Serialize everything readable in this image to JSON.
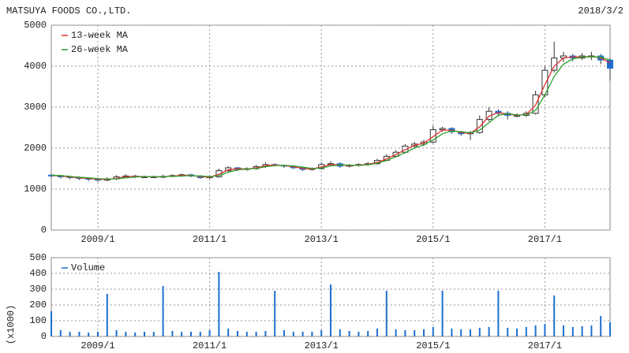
{
  "chart_data": [
    {
      "type": "candlestick",
      "title": "MATSUYA FOODS CO.,LTD.",
      "date_label": "2018/3/2",
      "x": [
        "2008/3",
        "2008/5",
        "2008/7",
        "2008/9",
        "2008/11",
        "2009/1",
        "2009/3",
        "2009/5",
        "2009/7",
        "2009/9",
        "2009/11",
        "2010/1",
        "2010/3",
        "2010/5",
        "2010/7",
        "2010/9",
        "2010/11",
        "2011/1",
        "2011/3",
        "2011/5",
        "2011/7",
        "2011/9",
        "2011/11",
        "2012/1",
        "2012/3",
        "2012/5",
        "2012/7",
        "2012/9",
        "2012/11",
        "2013/1",
        "2013/3",
        "2013/5",
        "2013/7",
        "2013/9",
        "2013/11",
        "2014/1",
        "2014/3",
        "2014/5",
        "2014/7",
        "2014/9",
        "2014/11",
        "2015/1",
        "2015/3",
        "2015/5",
        "2015/7",
        "2015/9",
        "2015/11",
        "2016/1",
        "2016/3",
        "2016/5",
        "2016/7",
        "2016/9",
        "2016/11",
        "2017/1",
        "2017/3",
        "2017/5",
        "2017/7",
        "2017/9",
        "2017/11",
        "2018/1",
        "2018/3"
      ],
      "open": [
        1340,
        1330,
        1300,
        1280,
        1260,
        1250,
        1220,
        1250,
        1300,
        1320,
        1300,
        1300,
        1300,
        1310,
        1330,
        1350,
        1320,
        1280,
        1300,
        1450,
        1520,
        1480,
        1500,
        1550,
        1600,
        1580,
        1560,
        1520,
        1480,
        1500,
        1600,
        1620,
        1560,
        1580,
        1600,
        1620,
        1700,
        1800,
        1900,
        2050,
        2100,
        2150,
        2450,
        2480,
        2400,
        2350,
        2380,
        2700,
        2900,
        2850,
        2800,
        2800,
        2850,
        3300,
        3900,
        4200,
        4250,
        4200,
        4250,
        4250,
        4150
      ],
      "high": [
        1370,
        1350,
        1330,
        1310,
        1290,
        1280,
        1290,
        1340,
        1360,
        1350,
        1330,
        1330,
        1350,
        1360,
        1380,
        1370,
        1340,
        1330,
        1500,
        1560,
        1540,
        1530,
        1590,
        1650,
        1630,
        1600,
        1580,
        1550,
        1530,
        1650,
        1680,
        1650,
        1610,
        1630,
        1660,
        1740,
        1850,
        1950,
        2100,
        2150,
        2200,
        2550,
        2520,
        2510,
        2420,
        2420,
        2800,
        3000,
        2950,
        2900,
        2850,
        2900,
        3400,
        4000,
        4600,
        4350,
        4300,
        4320,
        4350,
        4300,
        4200
      ],
      "low": [
        1290,
        1260,
        1240,
        1220,
        1200,
        1170,
        1190,
        1220,
        1270,
        1270,
        1270,
        1270,
        1270,
        1290,
        1300,
        1290,
        1250,
        1250,
        1280,
        1420,
        1440,
        1450,
        1470,
        1520,
        1550,
        1520,
        1490,
        1440,
        1450,
        1480,
        1560,
        1520,
        1530,
        1550,
        1570,
        1600,
        1680,
        1770,
        1870,
        2000,
        2050,
        2120,
        2400,
        2350,
        2300,
        2200,
        2350,
        2650,
        2780,
        2700,
        2750,
        2760,
        2820,
        3250,
        3850,
        4100,
        4120,
        4150,
        4150,
        4050,
        3650
      ],
      "close": [
        1330,
        1300,
        1280,
        1260,
        1250,
        1220,
        1250,
        1300,
        1320,
        1300,
        1300,
        1300,
        1310,
        1330,
        1350,
        1320,
        1280,
        1300,
        1450,
        1520,
        1480,
        1500,
        1550,
        1600,
        1580,
        1560,
        1520,
        1480,
        1500,
        1600,
        1620,
        1560,
        1580,
        1600,
        1620,
        1700,
        1800,
        1900,
        2050,
        2100,
        2150,
        2450,
        2480,
        2400,
        2350,
        2380,
        2700,
        2900,
        2850,
        2800,
        2800,
        2850,
        3300,
        3900,
        4200,
        4250,
        4200,
        4250,
        4250,
        4150,
        3950
      ],
      "up_color": "#ffffff",
      "down_color": "#1f6fd0",
      "series": [
        {
          "name": "13-week MA",
          "color": "#e0302f",
          "values": [
            1335,
            1320,
            1295,
            1275,
            1260,
            1240,
            1235,
            1265,
            1300,
            1310,
            1305,
            1300,
            1305,
            1315,
            1335,
            1335,
            1305,
            1290,
            1360,
            1470,
            1500,
            1490,
            1520,
            1570,
            1590,
            1575,
            1545,
            1505,
            1490,
            1540,
            1600,
            1590,
            1570,
            1585,
            1605,
            1650,
            1740,
            1840,
            1960,
            2070,
            2120,
            2280,
            2440,
            2440,
            2380,
            2360,
            2520,
            2780,
            2870,
            2830,
            2800,
            2820,
            3050,
            3550,
            4000,
            4200,
            4230,
            4220,
            4240,
            4200,
            4080
          ]
        },
        {
          "name": "26-week MA",
          "color": "#2ca02c",
          "values": [
            1340,
            1330,
            1310,
            1290,
            1275,
            1255,
            1245,
            1250,
            1275,
            1295,
            1305,
            1305,
            1305,
            1310,
            1320,
            1330,
            1320,
            1305,
            1330,
            1410,
            1470,
            1490,
            1505,
            1545,
            1575,
            1580,
            1565,
            1535,
            1505,
            1515,
            1565,
            1590,
            1585,
            1580,
            1595,
            1630,
            1700,
            1790,
            1890,
            2000,
            2080,
            2200,
            2350,
            2420,
            2400,
            2370,
            2440,
            2620,
            2800,
            2840,
            2810,
            2810,
            2920,
            3300,
            3750,
            4050,
            4180,
            4220,
            4230,
            4220,
            4150
          ]
        }
      ],
      "ylim": [
        0,
        5000
      ],
      "yticks": [
        0,
        1000,
        2000,
        3000,
        4000,
        5000
      ],
      "xticks": [
        "2009/1",
        "2011/1",
        "2013/1",
        "2015/1",
        "2017/1"
      ],
      "grid": true,
      "legend": "upper left"
    },
    {
      "type": "bar",
      "ylabel": "(x1000)",
      "x": [
        "2008/3",
        "2008/5",
        "2008/7",
        "2008/9",
        "2008/11",
        "2009/1",
        "2009/3",
        "2009/5",
        "2009/7",
        "2009/9",
        "2009/11",
        "2010/1",
        "2010/3",
        "2010/5",
        "2010/7",
        "2010/9",
        "2010/11",
        "2011/1",
        "2011/3",
        "2011/5",
        "2011/7",
        "2011/9",
        "2011/11",
        "2012/1",
        "2012/3",
        "2012/5",
        "2012/7",
        "2012/9",
        "2012/11",
        "2013/1",
        "2013/3",
        "2013/5",
        "2013/7",
        "2013/9",
        "2013/11",
        "2014/1",
        "2014/3",
        "2014/5",
        "2014/7",
        "2014/9",
        "2014/11",
        "2015/1",
        "2015/3",
        "2015/5",
        "2015/7",
        "2015/9",
        "2015/11",
        "2016/1",
        "2016/3",
        "2016/5",
        "2016/7",
        "2016/9",
        "2016/11",
        "2017/1",
        "2017/3",
        "2017/5",
        "2017/7",
        "2017/9",
        "2017/11",
        "2018/1",
        "2018/3"
      ],
      "series": [
        {
          "name": "Volume",
          "color": "#1f6fd0",
          "values": [
            160,
            40,
            30,
            30,
            25,
            30,
            270,
            40,
            30,
            25,
            30,
            30,
            320,
            35,
            30,
            30,
            30,
            40,
            410,
            50,
            35,
            30,
            30,
            35,
            290,
            40,
            30,
            30,
            30,
            40,
            330,
            45,
            35,
            30,
            35,
            50,
            290,
            45,
            40,
            40,
            45,
            60,
            290,
            50,
            45,
            45,
            55,
            60,
            290,
            55,
            50,
            60,
            70,
            80,
            260,
            70,
            60,
            65,
            70,
            130,
            90
          ]
        }
      ],
      "ylim": [
        0,
        500
      ],
      "yticks": [
        0,
        100,
        200,
        300,
        400,
        500
      ],
      "xticks": [
        "2009/1",
        "2011/1",
        "2013/1",
        "2015/1",
        "2017/1"
      ],
      "grid": true,
      "legend": "upper left"
    }
  ]
}
